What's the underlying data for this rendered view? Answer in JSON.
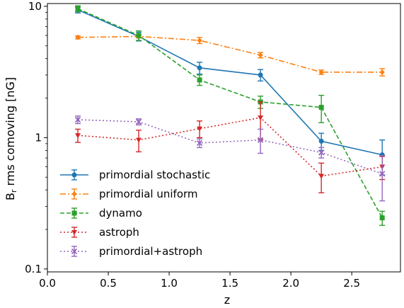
{
  "chart_data": {
    "type": "line",
    "xlabel": "z",
    "ylabel_main": "B",
    "ylabel_sub": "r",
    "ylabel_rest": " rms comoving [nG]",
    "xlim": [
      0.0,
      2.9
    ],
    "ylim": [
      0.095,
      10.5
    ],
    "yscale": "log",
    "grid": false,
    "legend_position": "lower-left",
    "xticks": [
      {
        "v": 0.0,
        "label": "0.0"
      },
      {
        "v": 0.5,
        "label": "0.5"
      },
      {
        "v": 1.0,
        "label": "1.0"
      },
      {
        "v": 1.5,
        "label": "1.5"
      },
      {
        "v": 2.0,
        "label": "2.0"
      },
      {
        "v": 2.5,
        "label": "2.5"
      }
    ],
    "yticks": [
      {
        "v": 0.1,
        "label": "0.1"
      },
      {
        "v": 1,
        "label": "1"
      },
      {
        "v": 10,
        "label": "10"
      }
    ],
    "series": [
      {
        "name": "primordial stochastic",
        "color": "#1f77b4",
        "linestyle": "solid",
        "marker": "circle",
        "x": [
          0.25,
          0.75,
          1.25,
          1.75,
          2.25,
          2.75
        ],
        "y": [
          9.4,
          5.9,
          3.4,
          3.0,
          0.94,
          0.74
        ],
        "yerr": [
          0.5,
          0.45,
          0.35,
          0.3,
          0.14,
          0.22
        ]
      },
      {
        "name": "primordial uniform",
        "color": "#ff7f0e",
        "linestyle": "dashdot",
        "marker": "diamond",
        "x": [
          0.25,
          0.75,
          1.25,
          1.75,
          2.25,
          2.75
        ],
        "y": [
          5.8,
          5.9,
          5.5,
          4.25,
          3.15,
          3.15
        ],
        "yerr": [
          0.15,
          0.15,
          0.3,
          0.2,
          0.12,
          0.2
        ]
      },
      {
        "name": "dynamo",
        "color": "#2ca02c",
        "linestyle": "dashed",
        "marker": "square",
        "x": [
          0.25,
          0.75,
          1.25,
          1.75,
          2.25,
          2.75
        ],
        "y": [
          9.6,
          6.0,
          2.75,
          1.87,
          1.7,
          0.245
        ],
        "yerr": [
          0.5,
          0.5,
          0.25,
          0.2,
          0.4,
          0.03
        ]
      },
      {
        "name": "astroph",
        "color": "#d62728",
        "linestyle": "dotted",
        "marker": "triangle-down",
        "x": [
          0.25,
          0.75,
          1.25,
          1.75,
          2.25,
          2.75
        ],
        "y": [
          1.04,
          0.96,
          1.17,
          1.42,
          0.51,
          0.6
        ],
        "yerr": [
          0.12,
          0.18,
          0.17,
          0.45,
          0.13,
          0.12
        ]
      },
      {
        "name": "primordial+astroph",
        "color": "#9467bd",
        "linestyle": "dotted",
        "marker": "x",
        "x": [
          0.25,
          0.75,
          1.25,
          1.75,
          2.25,
          2.75
        ],
        "y": [
          1.37,
          1.32,
          0.91,
          0.96,
          0.77,
          0.53
        ],
        "yerr": [
          0.09,
          0.07,
          0.07,
          0.2,
          0.07,
          0.2
        ]
      }
    ]
  }
}
